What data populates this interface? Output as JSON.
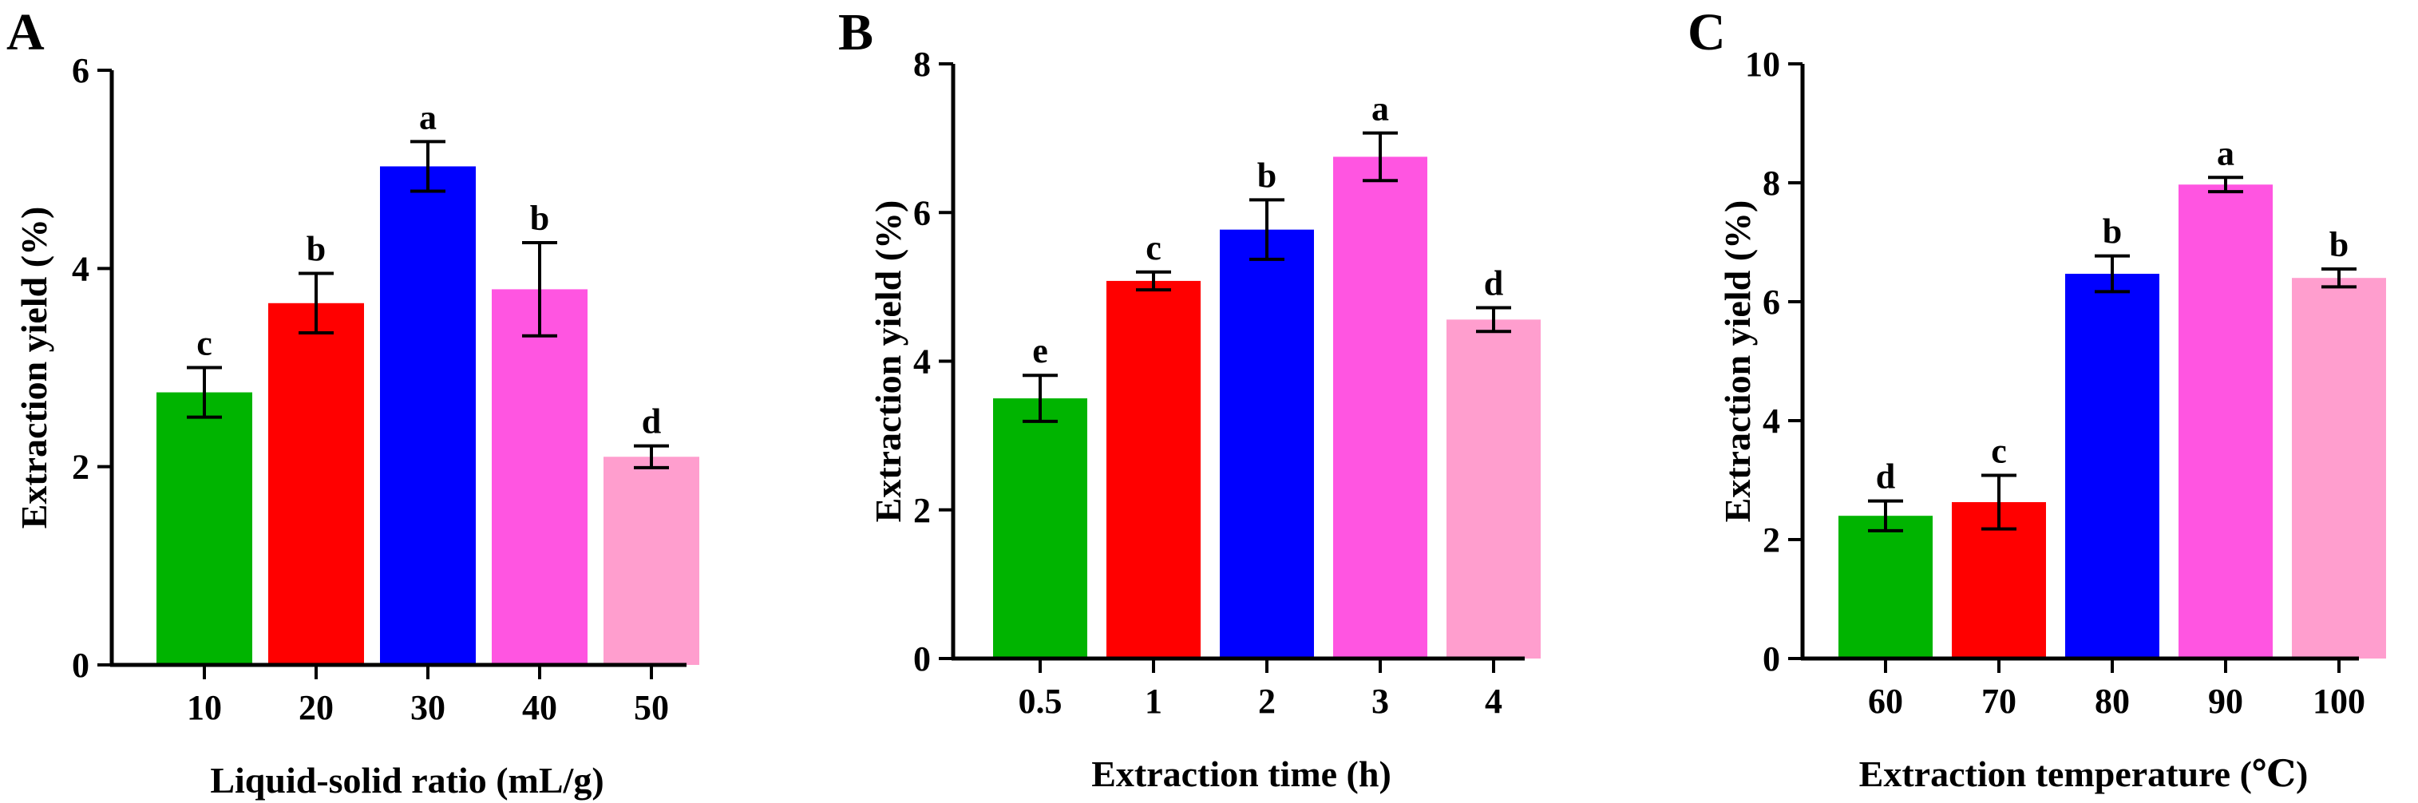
{
  "figure": {
    "chart_data": [
      {
        "type": "bar",
        "panel": "A",
        "xlabel": "Liquid-solid ratio (mL/g)",
        "ylabel": "Extraction yield (%)",
        "ylim": [
          0,
          6
        ],
        "yticks": [
          "0",
          "2",
          "4",
          "6"
        ],
        "categories": [
          "10",
          "20",
          "30",
          "40",
          "50"
        ],
        "values": [
          2.75,
          3.65,
          5.03,
          3.79,
          2.1
        ],
        "errors": [
          0.25,
          0.3,
          0.25,
          0.47,
          0.11
        ],
        "significance": [
          "c",
          "b",
          "a",
          "b",
          "d"
        ],
        "colors": [
          "#00b400",
          "#ff0000",
          "#0000ff",
          "#ff55e1",
          "#ff9ece"
        ]
      },
      {
        "type": "bar",
        "panel": "B",
        "xlabel": "Extraction time (h)",
        "ylabel": "Extraction yield (%)",
        "ylim": [
          0,
          8
        ],
        "yticks": [
          "0",
          "2",
          "4",
          "6",
          "8"
        ],
        "categories": [
          "0.5",
          "1",
          "2",
          "3",
          "4"
        ],
        "values": [
          3.5,
          5.08,
          5.77,
          6.75,
          4.56
        ],
        "errors": [
          0.31,
          0.12,
          0.4,
          0.32,
          0.16
        ],
        "significance": [
          "e",
          "c",
          "b",
          "a",
          "d"
        ],
        "colors": [
          "#00b400",
          "#ff0000",
          "#0000ff",
          "#ff55e1",
          "#ff9ece"
        ]
      },
      {
        "type": "bar",
        "panel": "C",
        "xlabel": "Extraction temperature (℃)",
        "ylabel": "Extraction yield (%)",
        "ylim": [
          0,
          10
        ],
        "yticks": [
          "0",
          "2",
          "4",
          "6",
          "8",
          "10"
        ],
        "categories": [
          "60",
          "70",
          "80",
          "90",
          "100"
        ],
        "values": [
          2.4,
          2.63,
          6.47,
          7.97,
          6.4
        ],
        "errors": [
          0.25,
          0.45,
          0.3,
          0.12,
          0.15
        ],
        "significance": [
          "d",
          "c",
          "b",
          "a",
          "b"
        ],
        "colors": [
          "#00b400",
          "#ff0000",
          "#0000ff",
          "#ff55e1",
          "#ff9ece"
        ]
      }
    ]
  }
}
